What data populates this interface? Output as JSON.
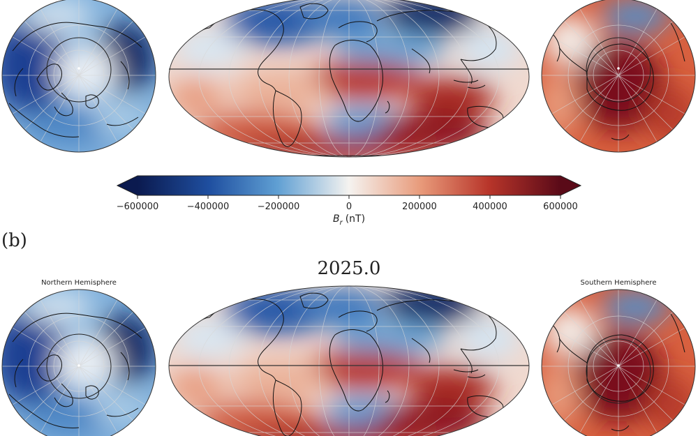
{
  "panel_b_label": "(b)",
  "lower_map": {
    "year": "2025.0",
    "north_title": "Northern Hemisphere",
    "south_title": "Southern Hemisphere"
  },
  "colorbar": {
    "ticks": [
      "−600000",
      "−400000",
      "−200000",
      "0",
      "200000",
      "400000",
      "600000"
    ],
    "tick_values": [
      -600000,
      -400000,
      -200000,
      0,
      200000,
      400000,
      600000
    ],
    "label_symbol": "B",
    "label_sub": "r",
    "label_unit": "(nT)",
    "range": [
      -600000,
      600000
    ],
    "colormap": "RdBu_r",
    "extend": "both",
    "colors": {
      "neg_max": "#0b1a4f",
      "neg_mid": "#2c6bb8",
      "neg_low": "#9cc5e3",
      "zero": "#f5f3f0",
      "pos_low": "#eeb095",
      "pos_mid": "#c8472c",
      "pos_max": "#5a0a18"
    }
  },
  "colors": {
    "coastline": "#111111",
    "graticule": "#cfcfcf",
    "background": "#ffffff"
  }
}
